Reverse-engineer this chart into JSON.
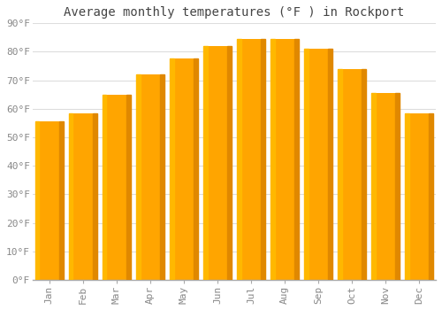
{
  "title": "Average monthly temperatures (°F ) in Rockport",
  "months": [
    "Jan",
    "Feb",
    "Mar",
    "Apr",
    "May",
    "Jun",
    "Jul",
    "Aug",
    "Sep",
    "Oct",
    "Nov",
    "Dec"
  ],
  "values": [
    55.5,
    58.5,
    65.0,
    72.0,
    77.5,
    82.0,
    84.5,
    84.5,
    81.0,
    74.0,
    65.5,
    58.5
  ],
  "bar_color_main": "#FFA500",
  "bar_color_light": "#FFB800",
  "bar_color_dark": "#E08800",
  "background_color": "#FFFFFF",
  "grid_color": "#DDDDDD",
  "ylim": [
    0,
    90
  ],
  "yticks": [
    0,
    10,
    20,
    30,
    40,
    50,
    60,
    70,
    80,
    90
  ],
  "ytick_labels": [
    "0°F",
    "10°F",
    "20°F",
    "30°F",
    "40°F",
    "50°F",
    "60°F",
    "70°F",
    "80°F",
    "90°F"
  ],
  "title_fontsize": 10,
  "tick_fontsize": 8,
  "title_color": "#444444",
  "tick_color": "#888888",
  "bar_width": 0.85
}
